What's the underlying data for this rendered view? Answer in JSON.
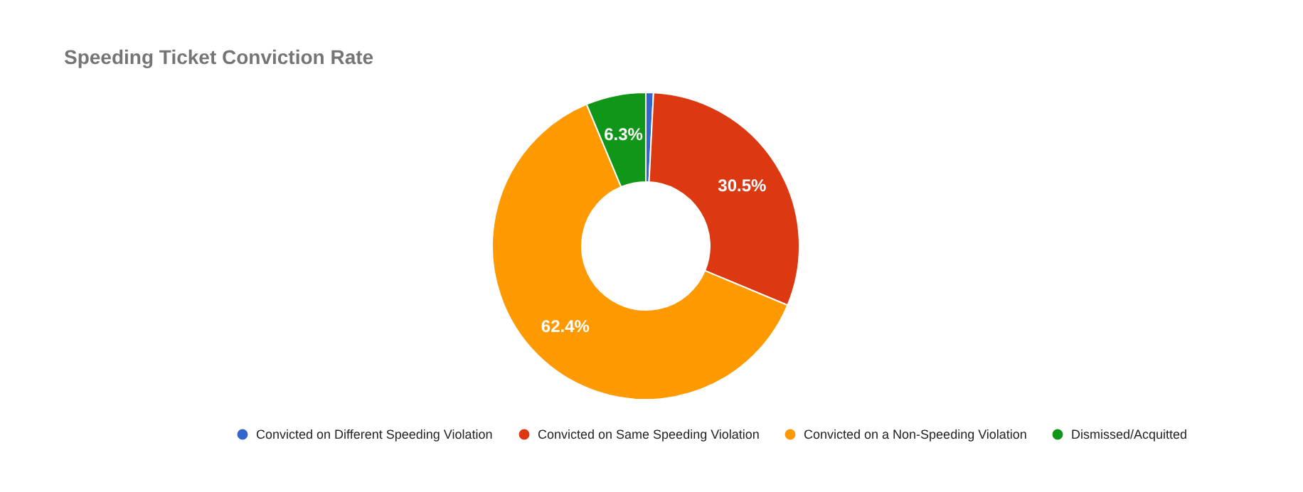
{
  "chart_data": {
    "type": "donut",
    "title": "Speeding Ticket Conviction Rate",
    "categories": [
      "Convicted on Different Speeding Violation",
      "Convicted on Same Speeding Violation",
      "Convicted on a Non-Speeding Violation",
      "Dismissed/Acquitted"
    ],
    "values": [
      0.8,
      30.5,
      62.4,
      6.3
    ],
    "colors": [
      "#3366cc",
      "#dc3912",
      "#ff9900",
      "#109618"
    ],
    "value_labels": [
      null,
      "30.5%",
      "62.4%",
      "6.3%"
    ],
    "legend": "bottom"
  }
}
